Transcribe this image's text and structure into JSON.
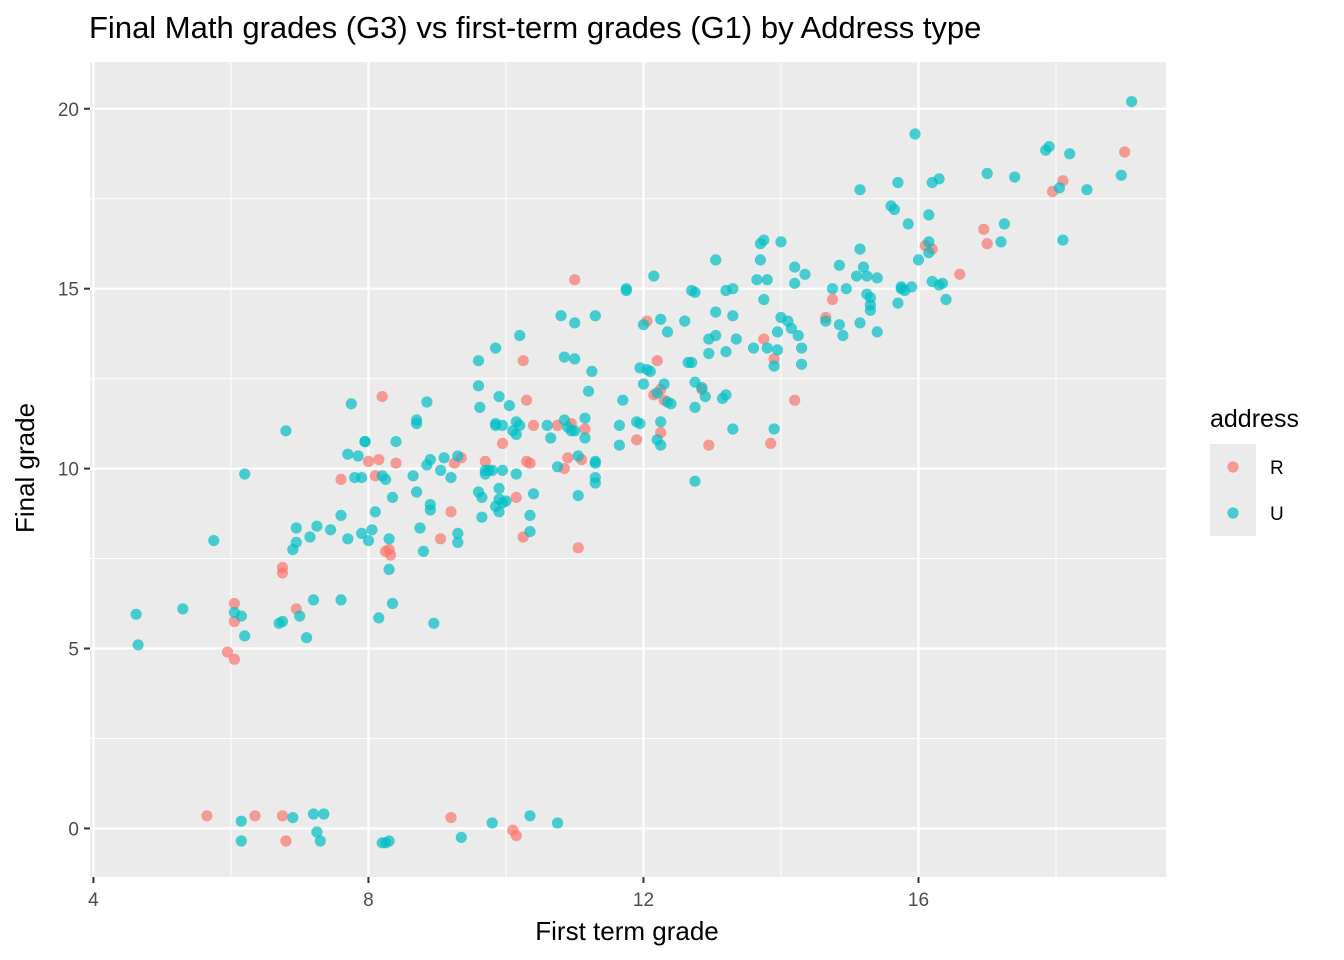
{
  "chart_data": {
    "type": "scatter",
    "title": "Final Math grades (G3) vs first-term grades (G1) by Address type",
    "xlabel": "First term grade",
    "ylabel": "Final grade",
    "xlim": [
      3.95,
      19.6
    ],
    "ylim": [
      -1.35,
      21.3
    ],
    "x_ticks": [
      4,
      8,
      12,
      16
    ],
    "y_ticks": [
      0,
      5,
      10,
      15,
      20
    ],
    "grid": true,
    "legend": {
      "title": "address",
      "position": "right"
    },
    "series": [
      {
        "name": "R",
        "color": "#F8766D",
        "points": [
          [
            5.65,
            0.35
          ],
          [
            6.35,
            0.35
          ],
          [
            6.75,
            0.35
          ],
          [
            6.8,
            -0.35
          ],
          [
            9.2,
            0.3
          ],
          [
            10.1,
            -0.05
          ],
          [
            10.15,
            -0.2
          ],
          [
            5.95,
            4.9
          ],
          [
            6.05,
            4.7
          ],
          [
            6.05,
            5.75
          ],
          [
            6.05,
            6.25
          ],
          [
            6.75,
            7.25
          ],
          [
            6.75,
            7.1
          ],
          [
            6.95,
            6.1
          ],
          [
            7.6,
            9.7
          ],
          [
            8.0,
            10.2
          ],
          [
            8.1,
            9.8
          ],
          [
            8.15,
            10.25
          ],
          [
            8.2,
            12.0
          ],
          [
            8.25,
            7.7
          ],
          [
            8.3,
            7.75
          ],
          [
            8.32,
            7.6
          ],
          [
            8.4,
            10.15
          ],
          [
            9.05,
            8.05
          ],
          [
            9.2,
            8.8
          ],
          [
            9.25,
            10.15
          ],
          [
            9.35,
            10.3
          ],
          [
            9.7,
            10.2
          ],
          [
            9.95,
            10.7
          ],
          [
            10.15,
            9.2
          ],
          [
            10.25,
            13.0
          ],
          [
            10.25,
            8.1
          ],
          [
            10.3,
            10.2
          ],
          [
            10.3,
            11.9
          ],
          [
            10.35,
            10.15
          ],
          [
            10.4,
            11.2
          ],
          [
            10.75,
            11.2
          ],
          [
            10.85,
            10.0
          ],
          [
            10.9,
            10.3
          ],
          [
            10.95,
            11.25
          ],
          [
            11.0,
            15.25
          ],
          [
            11.05,
            7.8
          ],
          [
            11.1,
            10.25
          ],
          [
            11.15,
            11.1
          ],
          [
            11.9,
            10.8
          ],
          [
            12.05,
            14.1
          ],
          [
            12.15,
            12.05
          ],
          [
            12.2,
            13.0
          ],
          [
            12.25,
            11.0
          ],
          [
            12.25,
            12.2
          ],
          [
            12.3,
            11.9
          ],
          [
            12.85,
            12.2
          ],
          [
            12.95,
            10.65
          ],
          [
            13.75,
            13.6
          ],
          [
            13.85,
            10.7
          ],
          [
            13.9,
            13.05
          ],
          [
            14.2,
            11.9
          ],
          [
            14.65,
            14.2
          ],
          [
            14.75,
            14.7
          ],
          [
            16.1,
            16.2
          ],
          [
            16.2,
            16.1
          ],
          [
            16.6,
            15.4
          ],
          [
            16.95,
            16.65
          ],
          [
            17.0,
            16.25
          ],
          [
            17.95,
            17.7
          ],
          [
            18.1,
            18.0
          ],
          [
            19.0,
            18.8
          ]
        ]
      },
      {
        "name": "U",
        "color": "#00BFC4",
        "points": [
          [
            4.62,
            5.95
          ],
          [
            4.65,
            5.1
          ],
          [
            5.3,
            6.1
          ],
          [
            5.75,
            8.0
          ],
          [
            6.05,
            6.0
          ],
          [
            6.15,
            5.9
          ],
          [
            6.2,
            5.35
          ],
          [
            6.2,
            9.85
          ],
          [
            6.7,
            5.7
          ],
          [
            6.75,
            5.75
          ],
          [
            6.8,
            11.05
          ],
          [
            6.9,
            7.75
          ],
          [
            6.95,
            7.95
          ],
          [
            6.95,
            8.35
          ],
          [
            7.0,
            5.9
          ],
          [
            7.1,
            5.3
          ],
          [
            7.15,
            8.1
          ],
          [
            7.2,
            6.35
          ],
          [
            7.25,
            8.4
          ],
          [
            7.45,
            8.3
          ],
          [
            7.6,
            8.7
          ],
          [
            7.6,
            6.35
          ],
          [
            7.7,
            8.05
          ],
          [
            7.7,
            10.4
          ],
          [
            7.75,
            11.8
          ],
          [
            7.8,
            9.75
          ],
          [
            7.85,
            10.35
          ],
          [
            7.9,
            9.75
          ],
          [
            7.9,
            8.2
          ],
          [
            7.95,
            10.75
          ],
          [
            7.95,
            10.75
          ],
          [
            8.0,
            8.0
          ],
          [
            8.05,
            8.3
          ],
          [
            8.1,
            8.8
          ],
          [
            8.15,
            5.85
          ],
          [
            8.2,
            9.8
          ],
          [
            8.25,
            9.7
          ],
          [
            8.3,
            8.05
          ],
          [
            8.3,
            7.2
          ],
          [
            8.35,
            9.2
          ],
          [
            8.35,
            6.25
          ],
          [
            8.4,
            10.75
          ],
          [
            8.65,
            9.8
          ],
          [
            8.7,
            11.35
          ],
          [
            8.7,
            11.25
          ],
          [
            8.7,
            9.35
          ],
          [
            8.75,
            8.35
          ],
          [
            8.8,
            7.7
          ],
          [
            8.85,
            10.1
          ],
          [
            8.85,
            11.85
          ],
          [
            8.9,
            8.85
          ],
          [
            8.9,
            9.0
          ],
          [
            8.9,
            10.25
          ],
          [
            8.95,
            5.7
          ],
          [
            9.05,
            9.95
          ],
          [
            9.1,
            10.3
          ],
          [
            9.2,
            9.75
          ],
          [
            9.3,
            10.35
          ],
          [
            9.3,
            8.2
          ],
          [
            9.3,
            7.95
          ],
          [
            9.6,
            12.3
          ],
          [
            9.6,
            13.0
          ],
          [
            9.6,
            9.35
          ],
          [
            9.62,
            11.7
          ],
          [
            9.65,
            8.65
          ],
          [
            9.65,
            9.2
          ],
          [
            9.7,
            9.85
          ],
          [
            9.7,
            9.95
          ],
          [
            9.75,
            9.95
          ],
          [
            9.8,
            9.95
          ],
          [
            9.85,
            13.35
          ],
          [
            9.85,
            11.25
          ],
          [
            9.85,
            11.2
          ],
          [
            9.85,
            8.95
          ],
          [
            9.9,
            12.0
          ],
          [
            9.9,
            9.45
          ],
          [
            9.9,
            9.15
          ],
          [
            9.9,
            8.8
          ],
          [
            9.95,
            11.2
          ],
          [
            9.95,
            9.95
          ],
          [
            9.95,
            9.05
          ],
          [
            10.0,
            9.1
          ],
          [
            10.05,
            11.75
          ],
          [
            10.1,
            11.05
          ],
          [
            10.15,
            11.3
          ],
          [
            10.15,
            10.95
          ],
          [
            10.15,
            9.85
          ],
          [
            10.2,
            13.7
          ],
          [
            10.2,
            11.2
          ],
          [
            10.35,
            8.7
          ],
          [
            10.35,
            8.25
          ],
          [
            10.4,
            9.3
          ],
          [
            10.6,
            11.2
          ],
          [
            10.65,
            10.85
          ],
          [
            10.75,
            10.05
          ],
          [
            10.8,
            14.25
          ],
          [
            10.85,
            13.1
          ],
          [
            10.85,
            11.35
          ],
          [
            10.9,
            11.15
          ],
          [
            10.95,
            11.05
          ],
          [
            11.0,
            13.05
          ],
          [
            11.0,
            14.05
          ],
          [
            11.0,
            11.05
          ],
          [
            11.05,
            9.25
          ],
          [
            11.05,
            10.35
          ],
          [
            11.15,
            10.85
          ],
          [
            11.15,
            11.4
          ],
          [
            11.2,
            12.15
          ],
          [
            11.25,
            12.7
          ],
          [
            11.3,
            10.2
          ],
          [
            11.3,
            10.15
          ],
          [
            11.3,
            9.75
          ],
          [
            11.3,
            9.6
          ],
          [
            11.3,
            14.25
          ],
          [
            11.65,
            11.2
          ],
          [
            11.65,
            10.65
          ],
          [
            11.7,
            11.9
          ],
          [
            11.75,
            15.0
          ],
          [
            11.75,
            14.95
          ],
          [
            11.9,
            11.3
          ],
          [
            11.95,
            12.8
          ],
          [
            11.95,
            11.25
          ],
          [
            12.0,
            12.35
          ],
          [
            12.0,
            14.0
          ],
          [
            12.05,
            12.75
          ],
          [
            12.1,
            12.7
          ],
          [
            12.15,
            15.35
          ],
          [
            12.2,
            10.8
          ],
          [
            12.2,
            12.1
          ],
          [
            12.25,
            14.15
          ],
          [
            12.25,
            10.65
          ],
          [
            12.25,
            11.3
          ],
          [
            12.3,
            12.35
          ],
          [
            12.35,
            13.8
          ],
          [
            12.35,
            11.85
          ],
          [
            12.4,
            11.8
          ],
          [
            12.6,
            14.1
          ],
          [
            12.65,
            12.95
          ],
          [
            12.7,
            14.95
          ],
          [
            12.7,
            12.95
          ],
          [
            12.75,
            14.9
          ],
          [
            12.75,
            12.4
          ],
          [
            12.75,
            11.7
          ],
          [
            12.75,
            9.65
          ],
          [
            12.85,
            12.25
          ],
          [
            12.9,
            12.0
          ],
          [
            12.95,
            13.2
          ],
          [
            12.95,
            13.6
          ],
          [
            13.05,
            15.8
          ],
          [
            13.05,
            13.7
          ],
          [
            13.05,
            14.35
          ],
          [
            13.15,
            11.95
          ],
          [
            13.2,
            14.95
          ],
          [
            13.2,
            13.25
          ],
          [
            13.2,
            12.05
          ],
          [
            13.3,
            15.0
          ],
          [
            13.3,
            14.25
          ],
          [
            13.3,
            11.1
          ],
          [
            13.35,
            13.6
          ],
          [
            13.6,
            13.35
          ],
          [
            13.65,
            15.25
          ],
          [
            13.7,
            15.8
          ],
          [
            13.7,
            16.25
          ],
          [
            13.75,
            16.35
          ],
          [
            13.75,
            14.7
          ],
          [
            13.8,
            13.35
          ],
          [
            13.8,
            15.25
          ],
          [
            13.9,
            11.1
          ],
          [
            13.9,
            12.85
          ],
          [
            13.95,
            13.3
          ],
          [
            13.95,
            13.8
          ],
          [
            14.0,
            14.2
          ],
          [
            14.0,
            16.3
          ],
          [
            14.1,
            14.1
          ],
          [
            14.15,
            13.9
          ],
          [
            14.2,
            15.6
          ],
          [
            14.2,
            15.15
          ],
          [
            14.25,
            13.7
          ],
          [
            14.3,
            13.35
          ],
          [
            14.3,
            12.9
          ],
          [
            14.35,
            15.4
          ],
          [
            14.65,
            14.1
          ],
          [
            14.75,
            15.0
          ],
          [
            14.85,
            15.65
          ],
          [
            14.85,
            14.0
          ],
          [
            14.9,
            13.7
          ],
          [
            14.95,
            15.0
          ],
          [
            15.1,
            15.35
          ],
          [
            15.15,
            16.1
          ],
          [
            15.15,
            14.05
          ],
          [
            15.15,
            17.75
          ],
          [
            15.2,
            15.6
          ],
          [
            15.25,
            15.35
          ],
          [
            15.25,
            14.85
          ],
          [
            15.3,
            14.75
          ],
          [
            15.3,
            14.55
          ],
          [
            15.3,
            14.4
          ],
          [
            15.4,
            13.8
          ],
          [
            15.4,
            15.3
          ],
          [
            15.6,
            17.3
          ],
          [
            15.65,
            17.2
          ],
          [
            15.7,
            14.6
          ],
          [
            15.7,
            17.95
          ],
          [
            15.75,
            15.0
          ],
          [
            15.75,
            15.05
          ],
          [
            15.8,
            14.95
          ],
          [
            15.85,
            16.8
          ],
          [
            15.9,
            15.05
          ],
          [
            15.95,
            19.3
          ],
          [
            16.0,
            15.8
          ],
          [
            16.15,
            16.3
          ],
          [
            16.15,
            16.0
          ],
          [
            16.15,
            17.05
          ],
          [
            16.2,
            17.95
          ],
          [
            16.2,
            15.2
          ],
          [
            16.3,
            18.05
          ],
          [
            16.3,
            15.1
          ],
          [
            16.35,
            15.15
          ],
          [
            16.4,
            14.7
          ],
          [
            17.0,
            18.2
          ],
          [
            17.2,
            16.3
          ],
          [
            17.25,
            16.8
          ],
          [
            17.4,
            18.1
          ],
          [
            17.85,
            18.85
          ],
          [
            17.9,
            18.95
          ],
          [
            18.05,
            17.8
          ],
          [
            18.1,
            16.35
          ],
          [
            18.2,
            18.75
          ],
          [
            18.45,
            17.75
          ],
          [
            18.95,
            18.15
          ],
          [
            19.1,
            20.2
          ],
          [
            6.15,
            0.2
          ],
          [
            6.15,
            -0.35
          ],
          [
            6.9,
            0.3
          ],
          [
            7.2,
            0.4
          ],
          [
            7.25,
            -0.1
          ],
          [
            7.3,
            -0.35
          ],
          [
            7.35,
            0.4
          ],
          [
            8.2,
            -0.4
          ],
          [
            8.25,
            -0.4
          ],
          [
            8.3,
            -0.35
          ],
          [
            9.35,
            -0.25
          ],
          [
            9.8,
            0.15
          ],
          [
            10.35,
            0.35
          ],
          [
            10.75,
            0.15
          ]
        ]
      }
    ]
  }
}
